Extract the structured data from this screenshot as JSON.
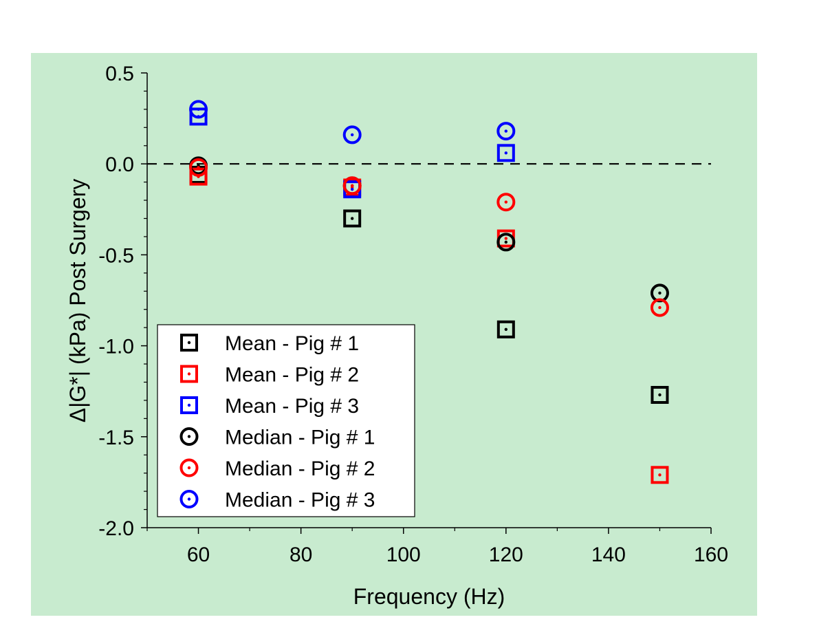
{
  "chart_data": {
    "type": "scatter",
    "title": "",
    "xlabel": "Frequency (Hz)",
    "ylabel": "Δ|G*| (kPa) Post Surgery",
    "xlim": [
      50,
      160
    ],
    "ylim": [
      -2.0,
      0.5
    ],
    "x_ticks": [
      60,
      80,
      100,
      120,
      140,
      160
    ],
    "x_tick_labels": [
      "60",
      "80",
      "100",
      "120",
      "140",
      "160"
    ],
    "y_ticks": [
      0.5,
      0.0,
      -0.5,
      -1.0,
      -1.5,
      -2.0
    ],
    "y_tick_labels": [
      "0.5",
      "0.0",
      "-0.5",
      "-1.0",
      "-1.5",
      "-2.0"
    ],
    "reference_line": {
      "y": 0.0,
      "style": "dashed"
    },
    "legend_position": "bottom-left",
    "series": [
      {
        "name": "Mean - Pig # 1",
        "marker": "square",
        "color": "#000000",
        "x": [
          60,
          90,
          120,
          150
        ],
        "y": [
          -0.06,
          -0.3,
          -0.91,
          -1.27
        ]
      },
      {
        "name": "Mean - Pig # 2",
        "marker": "square",
        "color": "#ff0000",
        "x": [
          60,
          90,
          120,
          150
        ],
        "y": [
          -0.07,
          -0.13,
          -0.41,
          -1.71
        ]
      },
      {
        "name": "Mean - Pig # 3",
        "marker": "square",
        "color": "#0000ff",
        "x": [
          60,
          90,
          120,
          150
        ],
        "y": [
          0.26,
          -0.14,
          0.06,
          null
        ]
      },
      {
        "name": "Median - Pig # 1",
        "marker": "circle",
        "color": "#000000",
        "x": [
          60,
          90,
          120,
          150
        ],
        "y": [
          -0.01,
          -0.12,
          -0.43,
          -0.71
        ]
      },
      {
        "name": "Median - Pig # 2",
        "marker": "circle",
        "color": "#ff0000",
        "x": [
          60,
          90,
          120,
          150
        ],
        "y": [
          -0.02,
          -0.12,
          -0.21,
          -0.79
        ]
      },
      {
        "name": "Median - Pig # 3",
        "marker": "circle",
        "color": "#0000ff",
        "x": [
          60,
          90,
          120,
          150
        ],
        "y": [
          0.3,
          0.16,
          0.18,
          null
        ]
      }
    ]
  }
}
